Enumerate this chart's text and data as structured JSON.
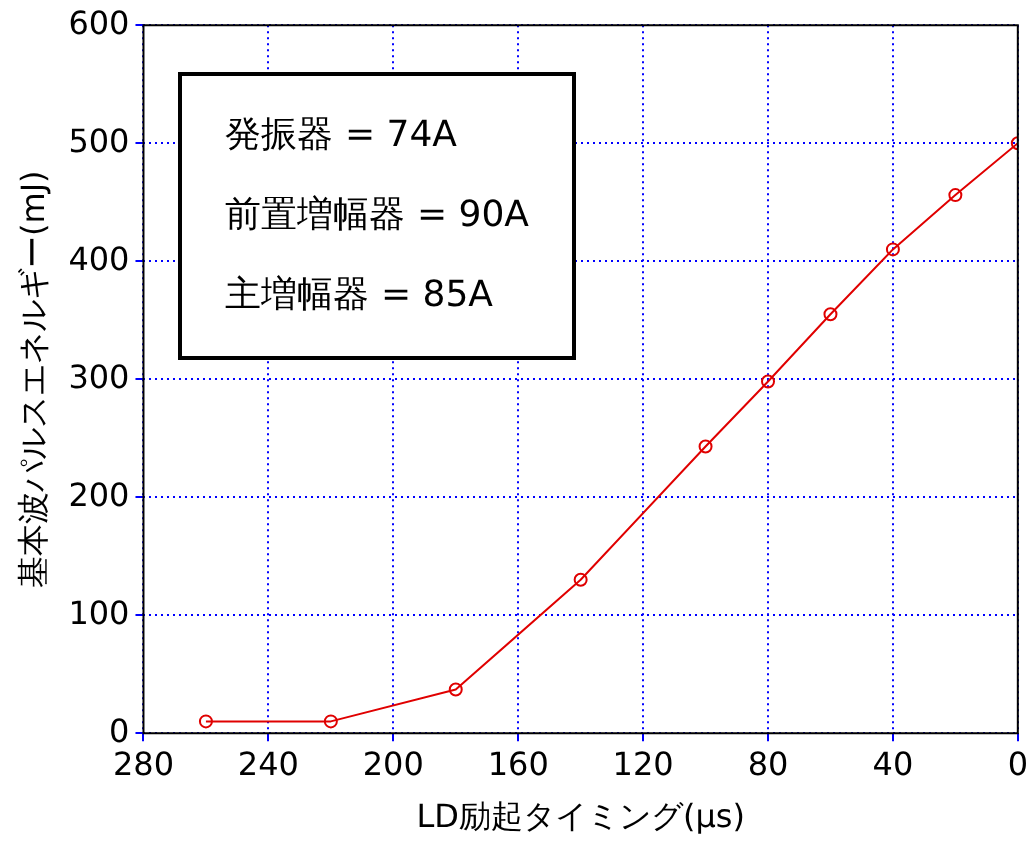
{
  "chart_data": {
    "type": "line",
    "xlabel": "LD励起タイミング(μs)",
    "ylabel": "基本波パルスエネルギー(mJ)",
    "x": [
      260,
      220,
      180,
      140,
      100,
      80,
      60,
      40,
      20,
      0
    ],
    "series": [
      {
        "color": "#e00000",
        "values": [
          10,
          10,
          37,
          130,
          243,
          298,
          355,
          410,
          456,
          500
        ]
      }
    ],
    "xlim": [
      280,
      0
    ],
    "xticks": [
      280,
      240,
      200,
      160,
      120,
      80,
      40,
      0
    ],
    "ylim": [
      0,
      600
    ],
    "yticks": [
      0,
      100,
      200,
      300,
      400,
      500,
      600
    ],
    "grid": true,
    "legend": false,
    "marker": "circle",
    "line_style": "solid",
    "annotations": [
      "発振器 = 74A",
      "前置増幅器 = 90A",
      "主増幅器 = 85A"
    ]
  }
}
